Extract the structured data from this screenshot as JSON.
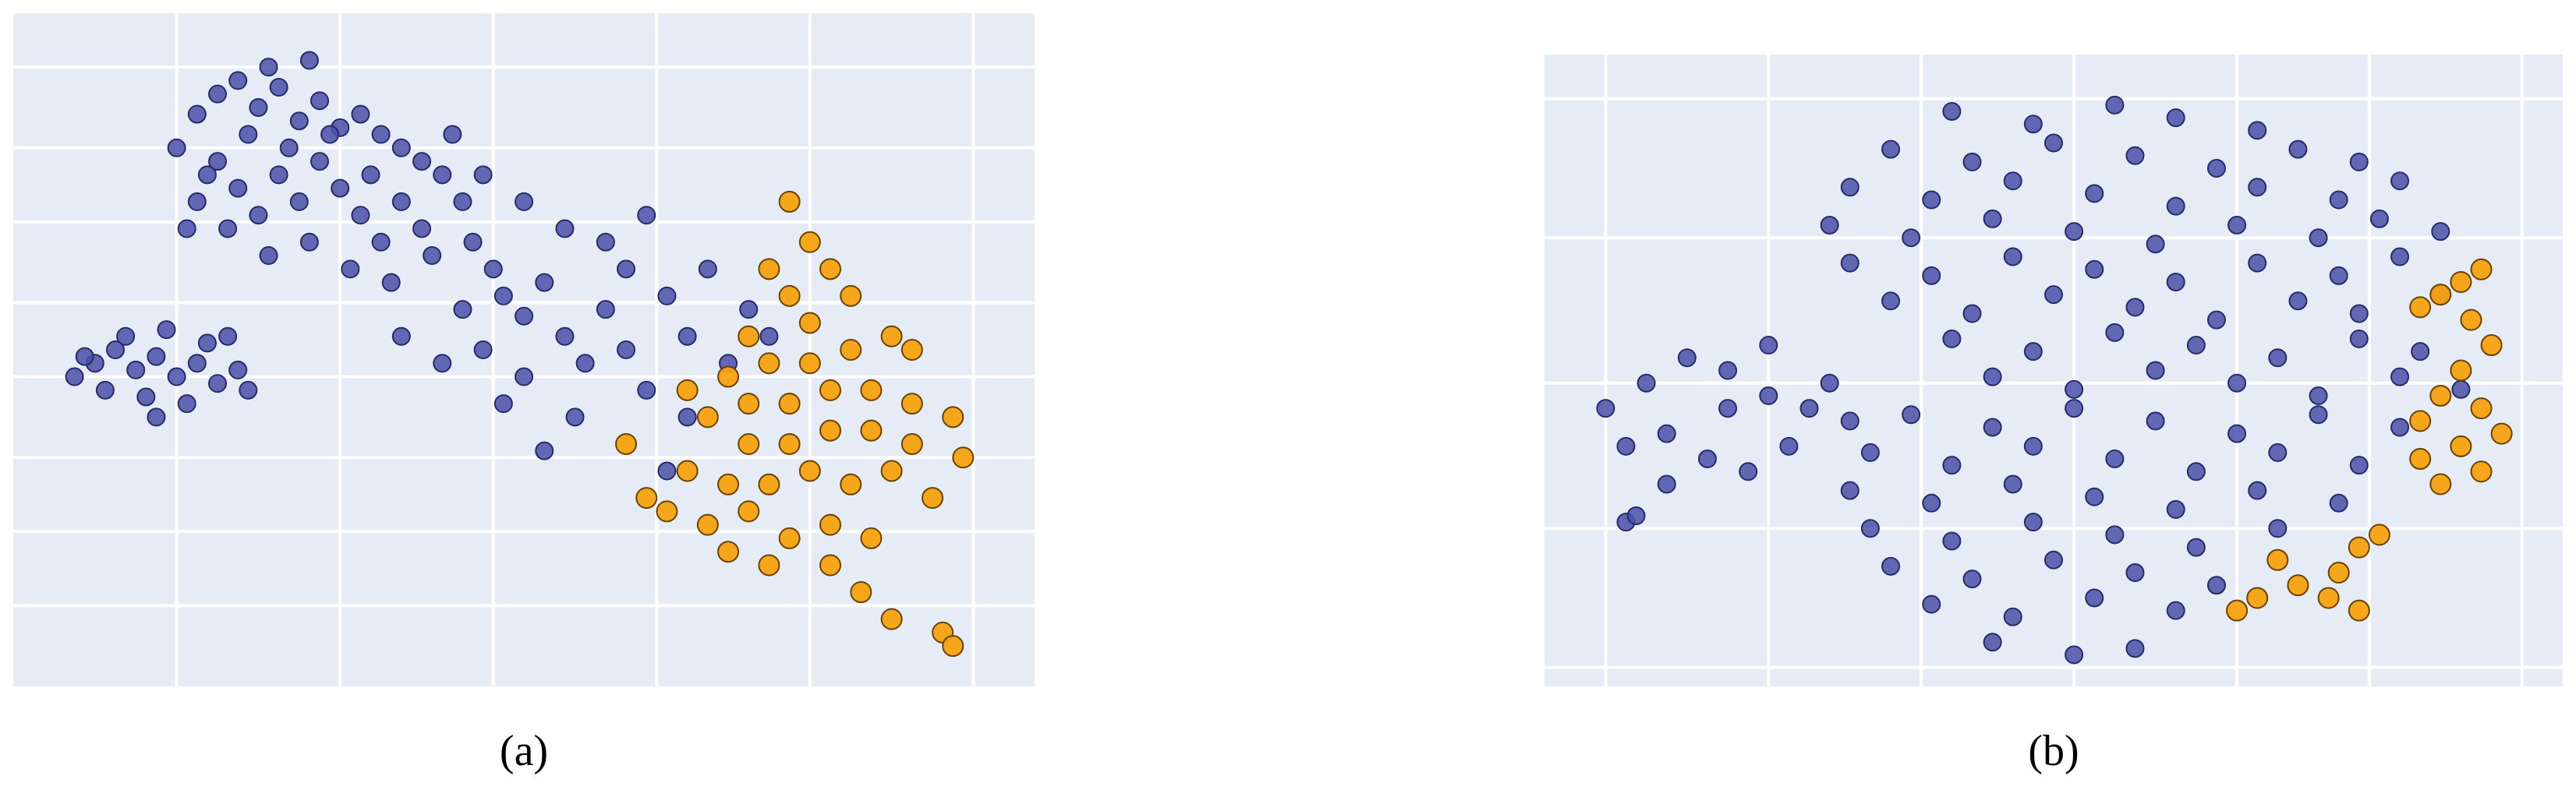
{
  "chart_data": [
    {
      "type": "scatter",
      "title": "(a)",
      "xlim": [
        0,
        100
      ],
      "ylim": [
        0,
        100
      ],
      "xticks": [
        16,
        32,
        47,
        63,
        78,
        94
      ],
      "yticks": [
        12,
        23,
        34,
        46,
        57,
        69,
        80,
        92
      ],
      "grid": true,
      "series": [
        {
          "color": "#4b50a8",
          "x": [
            16,
            18,
            20,
            22,
            24,
            26,
            28,
            30,
            32,
            34,
            36,
            38,
            40,
            42,
            44,
            20,
            22,
            24,
            26,
            28,
            30,
            32,
            34,
            36,
            38,
            40,
            18,
            21,
            25,
            29,
            33,
            37,
            41,
            45,
            47,
            27,
            31,
            35,
            23,
            19,
            25,
            29,
            17,
            43,
            46,
            48,
            50,
            52,
            54,
            56,
            50,
            46,
            44,
            58,
            60,
            62,
            64,
            66,
            55,
            52,
            48,
            42,
            38,
            60,
            68,
            70,
            72,
            62,
            58,
            54,
            50,
            66,
            64,
            74,
            6,
            8,
            10,
            12,
            14,
            16,
            18,
            20,
            22,
            9,
            13,
            17,
            11,
            15,
            19,
            7,
            23,
            21,
            14
          ],
          "values": [
            80,
            85,
            88,
            90,
            86,
            89,
            84,
            87,
            83,
            85,
            82,
            80,
            78,
            76,
            72,
            78,
            74,
            70,
            76,
            72,
            78,
            74,
            70,
            66,
            72,
            68,
            72,
            68,
            64,
            66,
            62,
            60,
            64,
            66,
            62,
            80,
            82,
            76,
            82,
            76,
            92,
            93,
            68,
            82,
            76,
            58,
            55,
            60,
            52,
            48,
            46,
            50,
            56,
            56,
            50,
            44,
            58,
            52,
            40,
            35,
            42,
            48,
            52,
            62,
            62,
            48,
            56,
            70,
            66,
            68,
            72,
            40,
            32,
            52,
            46,
            48,
            50,
            47,
            49,
            46,
            48,
            45,
            47,
            44,
            43,
            42,
            52,
            53,
            51,
            49,
            44,
            52,
            40
          ]
        },
        {
          "color": "#f5a20f",
          "x": [
            76,
            74,
            76,
            80,
            82,
            78,
            72,
            74,
            78,
            82,
            86,
            88,
            70,
            72,
            76,
            80,
            84,
            88,
            92,
            68,
            72,
            76,
            80,
            84,
            88,
            93,
            66,
            70,
            74,
            78,
            82,
            86,
            64,
            68,
            72,
            76,
            80,
            84,
            70,
            74,
            80,
            83,
            86,
            91,
            92,
            62,
            66,
            90,
            60,
            78
          ],
          "values": [
            72,
            62,
            58,
            62,
            58,
            54,
            52,
            48,
            48,
            50,
            52,
            50,
            46,
            42,
            42,
            44,
            44,
            42,
            40,
            40,
            36,
            36,
            38,
            38,
            36,
            34,
            32,
            30,
            30,
            32,
            30,
            32,
            26,
            24,
            26,
            22,
            24,
            22,
            20,
            18,
            18,
            14,
            10,
            8,
            6,
            28,
            44,
            28,
            36,
            66
          ]
        }
      ]
    },
    {
      "type": "scatter",
      "title": "(b)",
      "xlim": [
        0,
        100
      ],
      "ylim": [
        0,
        100
      ],
      "xticks": [
        6,
        22,
        37,
        52,
        68,
        81,
        96
      ],
      "yticks": [
        3,
        25,
        48,
        71,
        93
      ],
      "grid": true,
      "series": [
        {
          "color": "#4b50a8",
          "x": [
            40,
            48,
            56,
            62,
            70,
            34,
            42,
            50,
            58,
            66,
            74,
            80,
            30,
            38,
            46,
            54,
            62,
            70,
            78,
            84,
            28,
            36,
            44,
            52,
            60,
            68,
            76,
            82,
            88,
            30,
            38,
            46,
            54,
            62,
            70,
            78,
            84,
            34,
            42,
            50,
            58,
            66,
            74,
            80,
            88,
            40,
            48,
            56,
            64,
            72,
            80,
            86,
            44,
            52,
            60,
            68,
            76,
            84,
            90,
            36,
            44,
            52,
            60,
            68,
            76,
            84,
            32,
            40,
            48,
            56,
            64,
            72,
            80,
            30,
            38,
            46,
            54,
            62,
            70,
            78,
            32,
            40,
            48,
            56,
            64,
            72,
            34,
            42,
            50,
            58,
            66,
            38,
            46,
            54,
            62,
            44,
            52,
            58,
            6,
            10,
            14,
            18,
            22,
            26,
            30,
            8,
            12,
            16,
            20,
            24,
            28,
            12,
            18,
            22,
            8,
            9
          ],
          "values": [
            91,
            89,
            92,
            90,
            88,
            85,
            83,
            86,
            84,
            82,
            85,
            83,
            79,
            77,
            80,
            78,
            76,
            79,
            77,
            80,
            73,
            71,
            74,
            72,
            70,
            73,
            71,
            74,
            72,
            67,
            65,
            68,
            66,
            64,
            67,
            65,
            68,
            61,
            59,
            62,
            60,
            58,
            61,
            59,
            62,
            55,
            53,
            56,
            54,
            52,
            55,
            53,
            49,
            47,
            50,
            48,
            46,
            49,
            47,
            43,
            41,
            44,
            42,
            40,
            43,
            41,
            37,
            35,
            38,
            36,
            34,
            37,
            35,
            31,
            29,
            32,
            30,
            28,
            31,
            29,
            25,
            23,
            26,
            24,
            22,
            25,
            19,
            17,
            20,
            18,
            16,
            13,
            11,
            14,
            12,
            7,
            5,
            6,
            44,
            48,
            52,
            50,
            46,
            44,
            42,
            38,
            40,
            36,
            34,
            38,
            48,
            32,
            44,
            54,
            26,
            27
          ]
        },
        {
          "color": "#f5a20f",
          "x": [
            88,
            90,
            92,
            86,
            91,
            93,
            90,
            88,
            92,
            94,
            90,
            86,
            88,
            92,
            86,
            80,
            78,
            77,
            74,
            70,
            72,
            82,
            68,
            80
          ],
          "values": [
            62,
            64,
            66,
            60,
            58,
            54,
            50,
            46,
            44,
            40,
            38,
            36,
            32,
            34,
            42,
            22,
            18,
            14,
            16,
            14,
            20,
            24,
            12,
            12
          ]
        }
      ]
    }
  ]
}
